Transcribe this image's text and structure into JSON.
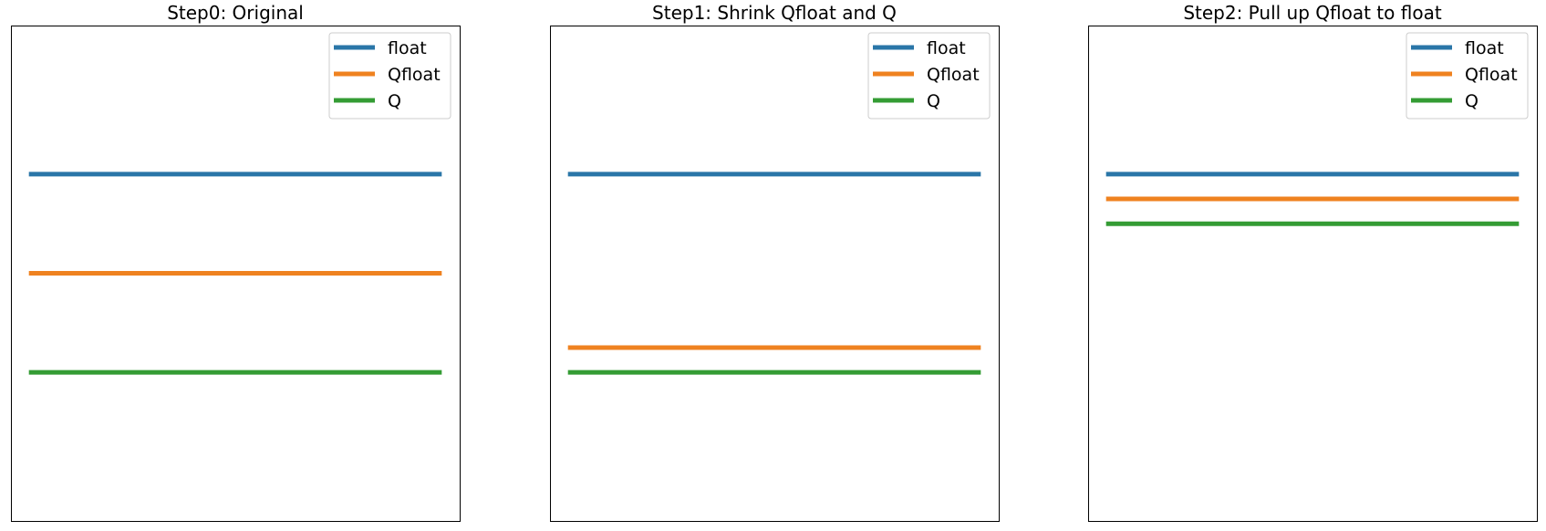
{
  "chart_data": [
    {
      "type": "line",
      "title": "Step0: Original",
      "xlabel": "",
      "ylabel": "",
      "ticks_shown": false,
      "legend_position": "upper right",
      "series": [
        {
          "name": "float",
          "y": 0.7,
          "color": "#2a76a8"
        },
        {
          "name": "Qfloat",
          "y": 0.5,
          "color": "#ef8220"
        },
        {
          "name": "Q",
          "y": 0.3,
          "color": "#349c34"
        }
      ]
    },
    {
      "type": "line",
      "title": "Step1: Shrink Qfloat and Q",
      "xlabel": "",
      "ylabel": "",
      "ticks_shown": false,
      "legend_position": "upper right",
      "series": [
        {
          "name": "float",
          "y": 0.7,
          "color": "#2a76a8"
        },
        {
          "name": "Qfloat",
          "y": 0.35,
          "color": "#ef8220"
        },
        {
          "name": "Q",
          "y": 0.3,
          "color": "#349c34"
        }
      ]
    },
    {
      "type": "line",
      "title": "Step2: Pull up Qfloat to float",
      "xlabel": "",
      "ylabel": "",
      "ticks_shown": false,
      "legend_position": "upper right",
      "series": [
        {
          "name": "float",
          "y": 0.7,
          "color": "#2a76a8"
        },
        {
          "name": "Qfloat",
          "y": 0.65,
          "color": "#ef8220"
        },
        {
          "name": "Q",
          "y": 0.6,
          "color": "#349c34"
        }
      ]
    }
  ]
}
